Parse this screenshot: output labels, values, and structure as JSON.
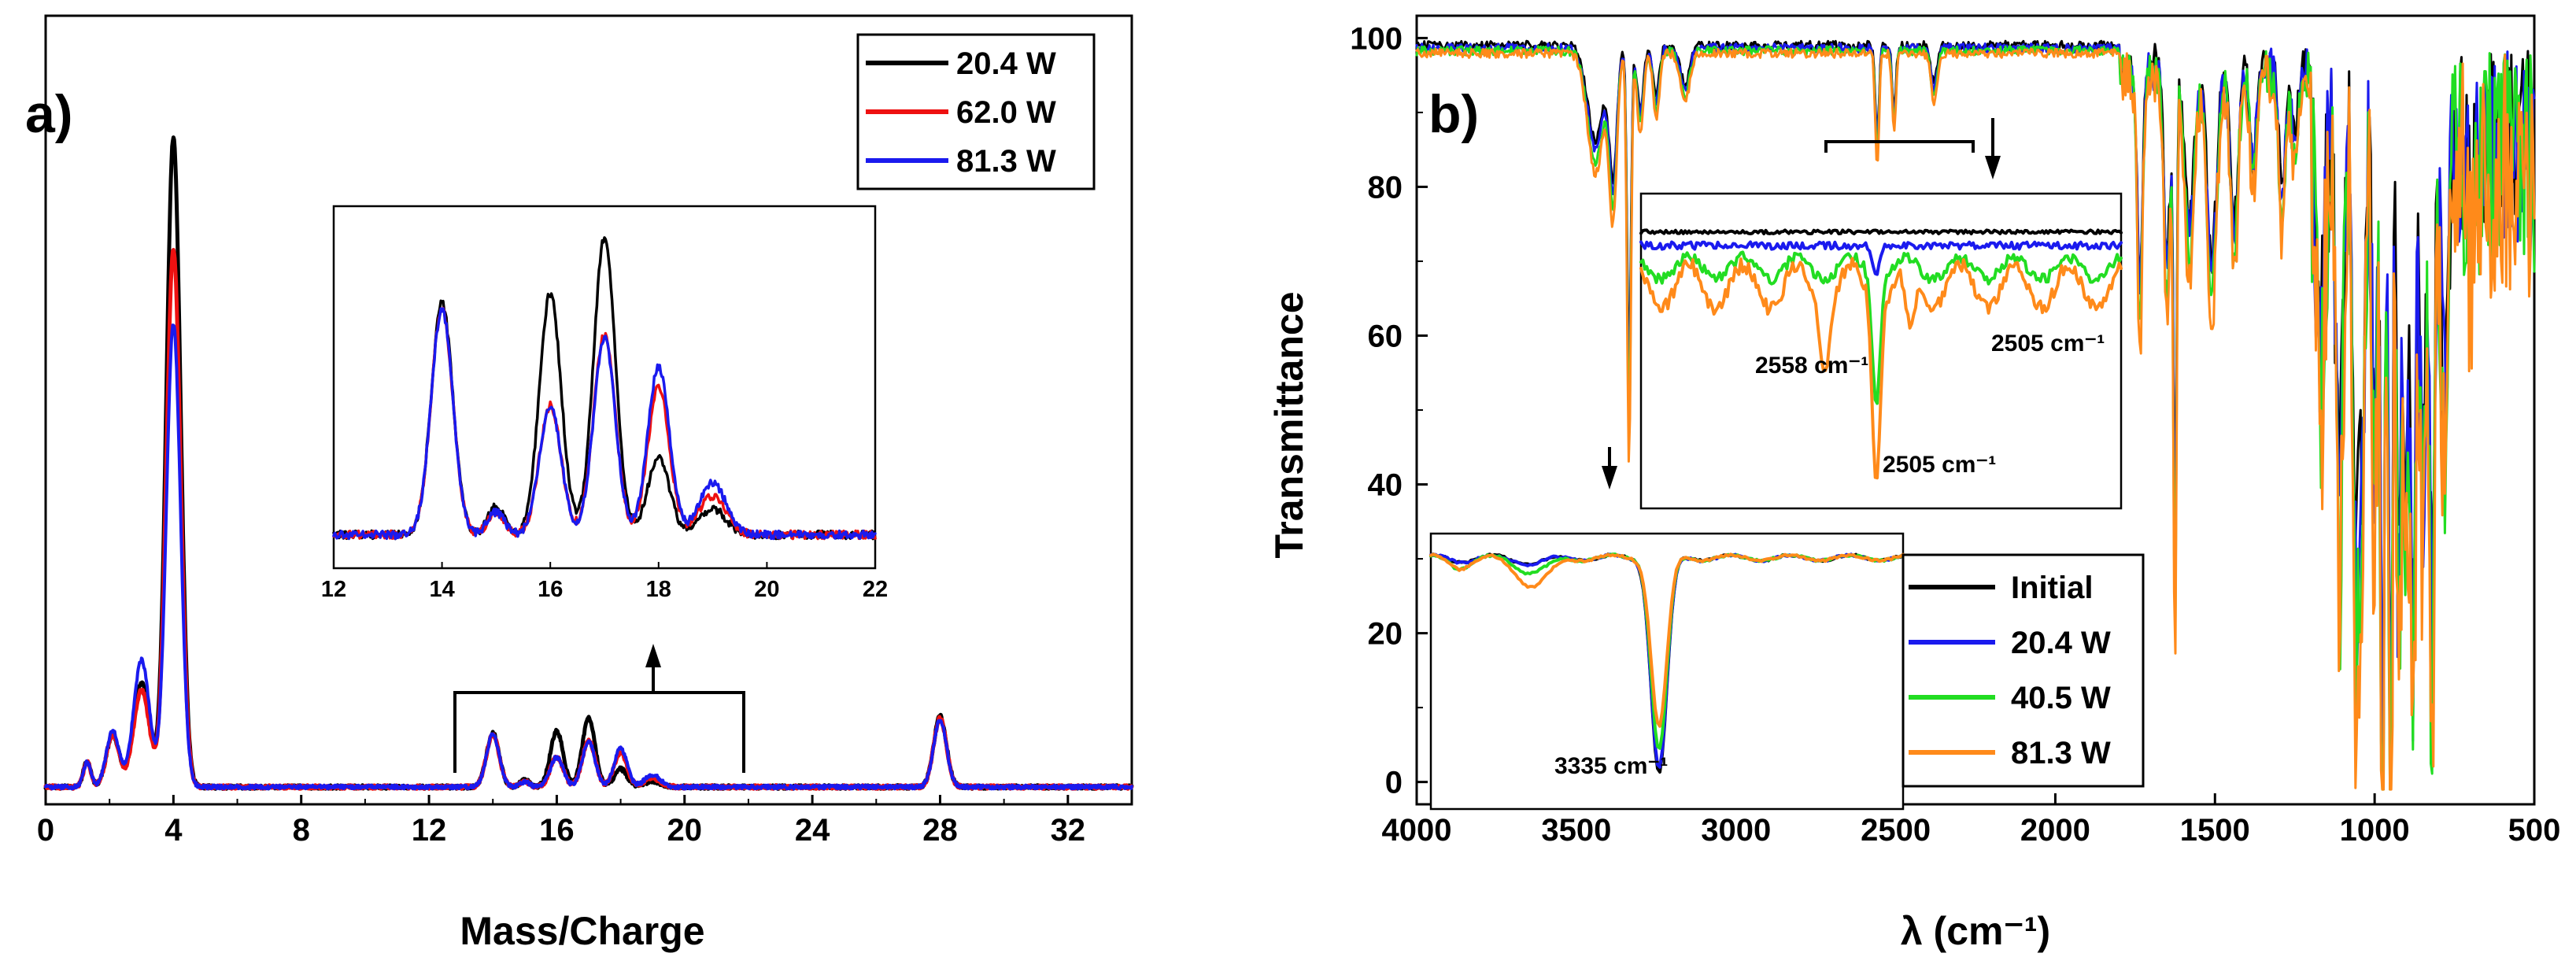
{
  "colors": {
    "black": "#000000",
    "red": "#ee1111",
    "blue": "#1a1aee",
    "green": "#22dd22",
    "orange": "#ff8a1a"
  },
  "chart_data": [
    {
      "type": "line",
      "panel_label": "a)",
      "xlabel": "Mass/Charge",
      "ylabel": "",
      "xlim": [
        0,
        34
      ],
      "ylim": [
        0,
        100
      ],
      "x_ticks": [
        "0",
        "4",
        "8",
        "12",
        "16",
        "20",
        "24",
        "28",
        "32"
      ],
      "legend_position": "top-right",
      "series": [
        {
          "name": "20.4 W",
          "color": "#000000",
          "peaks": [
            [
              1.3,
              0.12,
              3.5
            ],
            [
              2.1,
              0.2,
              7
            ],
            [
              3.0,
              0.25,
              14
            ],
            [
              4.0,
              0.22,
              87
            ],
            [
              14.0,
              0.2,
              7.2
            ],
            [
              15.0,
              0.15,
              0.9
            ],
            [
              16.0,
              0.2,
              7.5
            ],
            [
              17.0,
              0.2,
              9.2
            ],
            [
              18.0,
              0.2,
              2.4
            ],
            [
              19.0,
              0.25,
              0.8
            ],
            [
              28.0,
              0.2,
              9.5
            ]
          ]
        },
        {
          "name": "62.0 W",
          "color": "#ee1111",
          "peaks": [
            [
              1.3,
              0.12,
              3.3
            ],
            [
              2.1,
              0.2,
              7
            ],
            [
              3.0,
              0.25,
              13
            ],
            [
              4.0,
              0.22,
              72
            ],
            [
              14.0,
              0.2,
              7.0
            ],
            [
              15.0,
              0.15,
              0.7
            ],
            [
              16.0,
              0.2,
              4.0
            ],
            [
              17.0,
              0.2,
              6.2
            ],
            [
              18.0,
              0.2,
              4.6
            ],
            [
              19.0,
              0.25,
              1.2
            ],
            [
              28.0,
              0.2,
              9.2
            ]
          ]
        },
        {
          "name": "81.3 W",
          "color": "#1a1aee",
          "peaks": [
            [
              1.3,
              0.12,
              3.3
            ],
            [
              2.1,
              0.2,
              7.5
            ],
            [
              3.0,
              0.25,
              17
            ],
            [
              4.0,
              0.22,
              62
            ],
            [
              14.0,
              0.2,
              7.0
            ],
            [
              15.0,
              0.15,
              0.7
            ],
            [
              16.0,
              0.2,
              4.0
            ],
            [
              17.0,
              0.2,
              6.1
            ],
            [
              18.0,
              0.2,
              5.2
            ],
            [
              19.0,
              0.25,
              1.6
            ],
            [
              28.0,
              0.2,
              9.0
            ]
          ]
        }
      ],
      "inset": {
        "xlim": [
          12,
          22
        ],
        "x_ticks": [
          "12",
          "14",
          "16",
          "18",
          "20",
          "22"
        ]
      }
    },
    {
      "type": "line",
      "panel_label": "b)",
      "xlabel": "λ (cm⁻¹)",
      "ylabel": "Transmittance",
      "xlim": [
        4000,
        500
      ],
      "ylim": [
        -3,
        103
      ],
      "x_ticks": [
        "4000",
        "3500",
        "3000",
        "2500",
        "2000",
        "1500",
        "1000",
        "500"
      ],
      "y_ticks": [
        "0",
        "20",
        "40",
        "60",
        "80",
        "100"
      ],
      "legend_position": "bottom-center",
      "series": [
        {
          "name": "Initial",
          "color": "#000000",
          "band_scale": 0.85
        },
        {
          "name": "20.4 W",
          "color": "#1a1aee",
          "band_scale": 0.9
        },
        {
          "name": "40.5 W",
          "color": "#22dd22",
          "band_scale": 1.0
        },
        {
          "name": "81.3 W",
          "color": "#ff8a1a",
          "band_scale": 1.08
        }
      ],
      "bands": [
        [
          3440,
          25,
          15
        ],
        [
          3385,
          12,
          20
        ],
        [
          3335,
          6,
          52
        ],
        [
          3300,
          10,
          10
        ],
        [
          3250,
          10,
          8
        ],
        [
          3160,
          15,
          6
        ],
        [
          2558,
          6,
          14
        ],
        [
          2505,
          6,
          10
        ],
        [
          2380,
          10,
          6
        ],
        [
          1735,
          8,
          35
        ],
        [
          1650,
          10,
          30
        ],
        [
          1625,
          5,
          72
        ],
        [
          1580,
          15,
          25
        ],
        [
          1510,
          15,
          30
        ],
        [
          1440,
          12,
          25
        ],
        [
          1380,
          10,
          15
        ],
        [
          1290,
          10,
          20
        ],
        [
          1250,
          10,
          12
        ],
        [
          1170,
          12,
          30
        ],
        [
          1110,
          10,
          55
        ],
        [
          1060,
          8,
          65
        ],
        [
          1040,
          8,
          55
        ],
        [
          1000,
          8,
          45
        ],
        [
          975,
          6,
          90
        ],
        [
          950,
          6,
          95
        ],
        [
          925,
          6,
          70
        ],
        [
          905,
          8,
          50
        ],
        [
          880,
          8,
          78
        ],
        [
          850,
          8,
          55
        ],
        [
          820,
          8,
          75
        ],
        [
          780,
          10,
          40
        ],
        [
          700,
          10,
          12
        ]
      ],
      "annotations": [
        "2558 cm⁻¹",
        "2505 cm⁻¹",
        "2505 cm⁻¹",
        "3335 cm⁻¹"
      ]
    }
  ]
}
